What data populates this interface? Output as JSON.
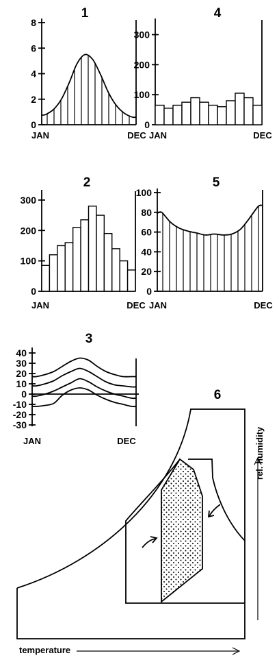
{
  "chart_data": [
    {
      "panel": "1",
      "type": "area",
      "x_labels": [
        "JAN",
        "DEC"
      ],
      "y_ticks": [
        "0",
        "2",
        "4",
        "6",
        "8"
      ],
      "ylim": [
        0,
        8
      ],
      "months": 12,
      "values": [
        0.8,
        1.2,
        2.0,
        3.3,
        4.8,
        5.5,
        5.1,
        3.9,
        2.5,
        1.5,
        0.9,
        0.6
      ],
      "hatched": true
    },
    {
      "panel": "4",
      "type": "bar",
      "x_labels": [
        "JAN",
        "DEC"
      ],
      "y_ticks": [
        "0",
        "100",
        "200",
        "300"
      ],
      "ylim": [
        0,
        340
      ],
      "values": [
        65,
        55,
        65,
        75,
        90,
        75,
        65,
        60,
        80,
        105,
        90,
        65
      ]
    },
    {
      "panel": "2",
      "type": "bar",
      "x_labels": [
        "JAN",
        "DEC"
      ],
      "y_ticks": [
        "0",
        "100",
        "200",
        "300"
      ],
      "ylim": [
        0,
        320
      ],
      "values": [
        85,
        120,
        150,
        160,
        210,
        235,
        280,
        250,
        190,
        140,
        100,
        70
      ]
    },
    {
      "panel": "5",
      "type": "area",
      "x_labels": [
        "JAN",
        "DEC"
      ],
      "y_ticks": [
        "0",
        "20",
        "40",
        "60",
        "80",
        "100"
      ],
      "ylim": [
        0,
        100
      ],
      "months": 12,
      "values": [
        80,
        70,
        64,
        61,
        59,
        57,
        58,
        57,
        58,
        63,
        74,
        86
      ],
      "hatched": true
    },
    {
      "panel": "3",
      "type": "line",
      "x_labels": [
        "JAN",
        "DEC"
      ],
      "y_ticks": [
        "-30",
        "-20",
        "-10",
        "0",
        "10",
        "20",
        "30",
        "40"
      ],
      "ylim": [
        -30,
        40
      ],
      "months": 12,
      "series": [
        {
          "values": [
            17,
            19,
            22,
            27,
            32,
            35,
            33,
            27,
            22,
            19,
            17,
            17
          ]
        },
        {
          "values": [
            8,
            10,
            13,
            18,
            22,
            25,
            22,
            17,
            12,
            9,
            8,
            7
          ]
        },
        {
          "values": [
            -2,
            0,
            3,
            7,
            11,
            15,
            12,
            7,
            3,
            0,
            -2,
            -4
          ]
        },
        {
          "values": [
            -12,
            -11,
            -9,
            -1,
            4,
            6,
            4,
            -1,
            -5,
            -8,
            -10,
            -12
          ]
        }
      ],
      "zero_line": true
    },
    {
      "panel": "6",
      "type": "diagram",
      "xlabel": "temperature",
      "ylabel": "rel. humidity",
      "stippled_region": true,
      "arrows": 2
    }
  ]
}
